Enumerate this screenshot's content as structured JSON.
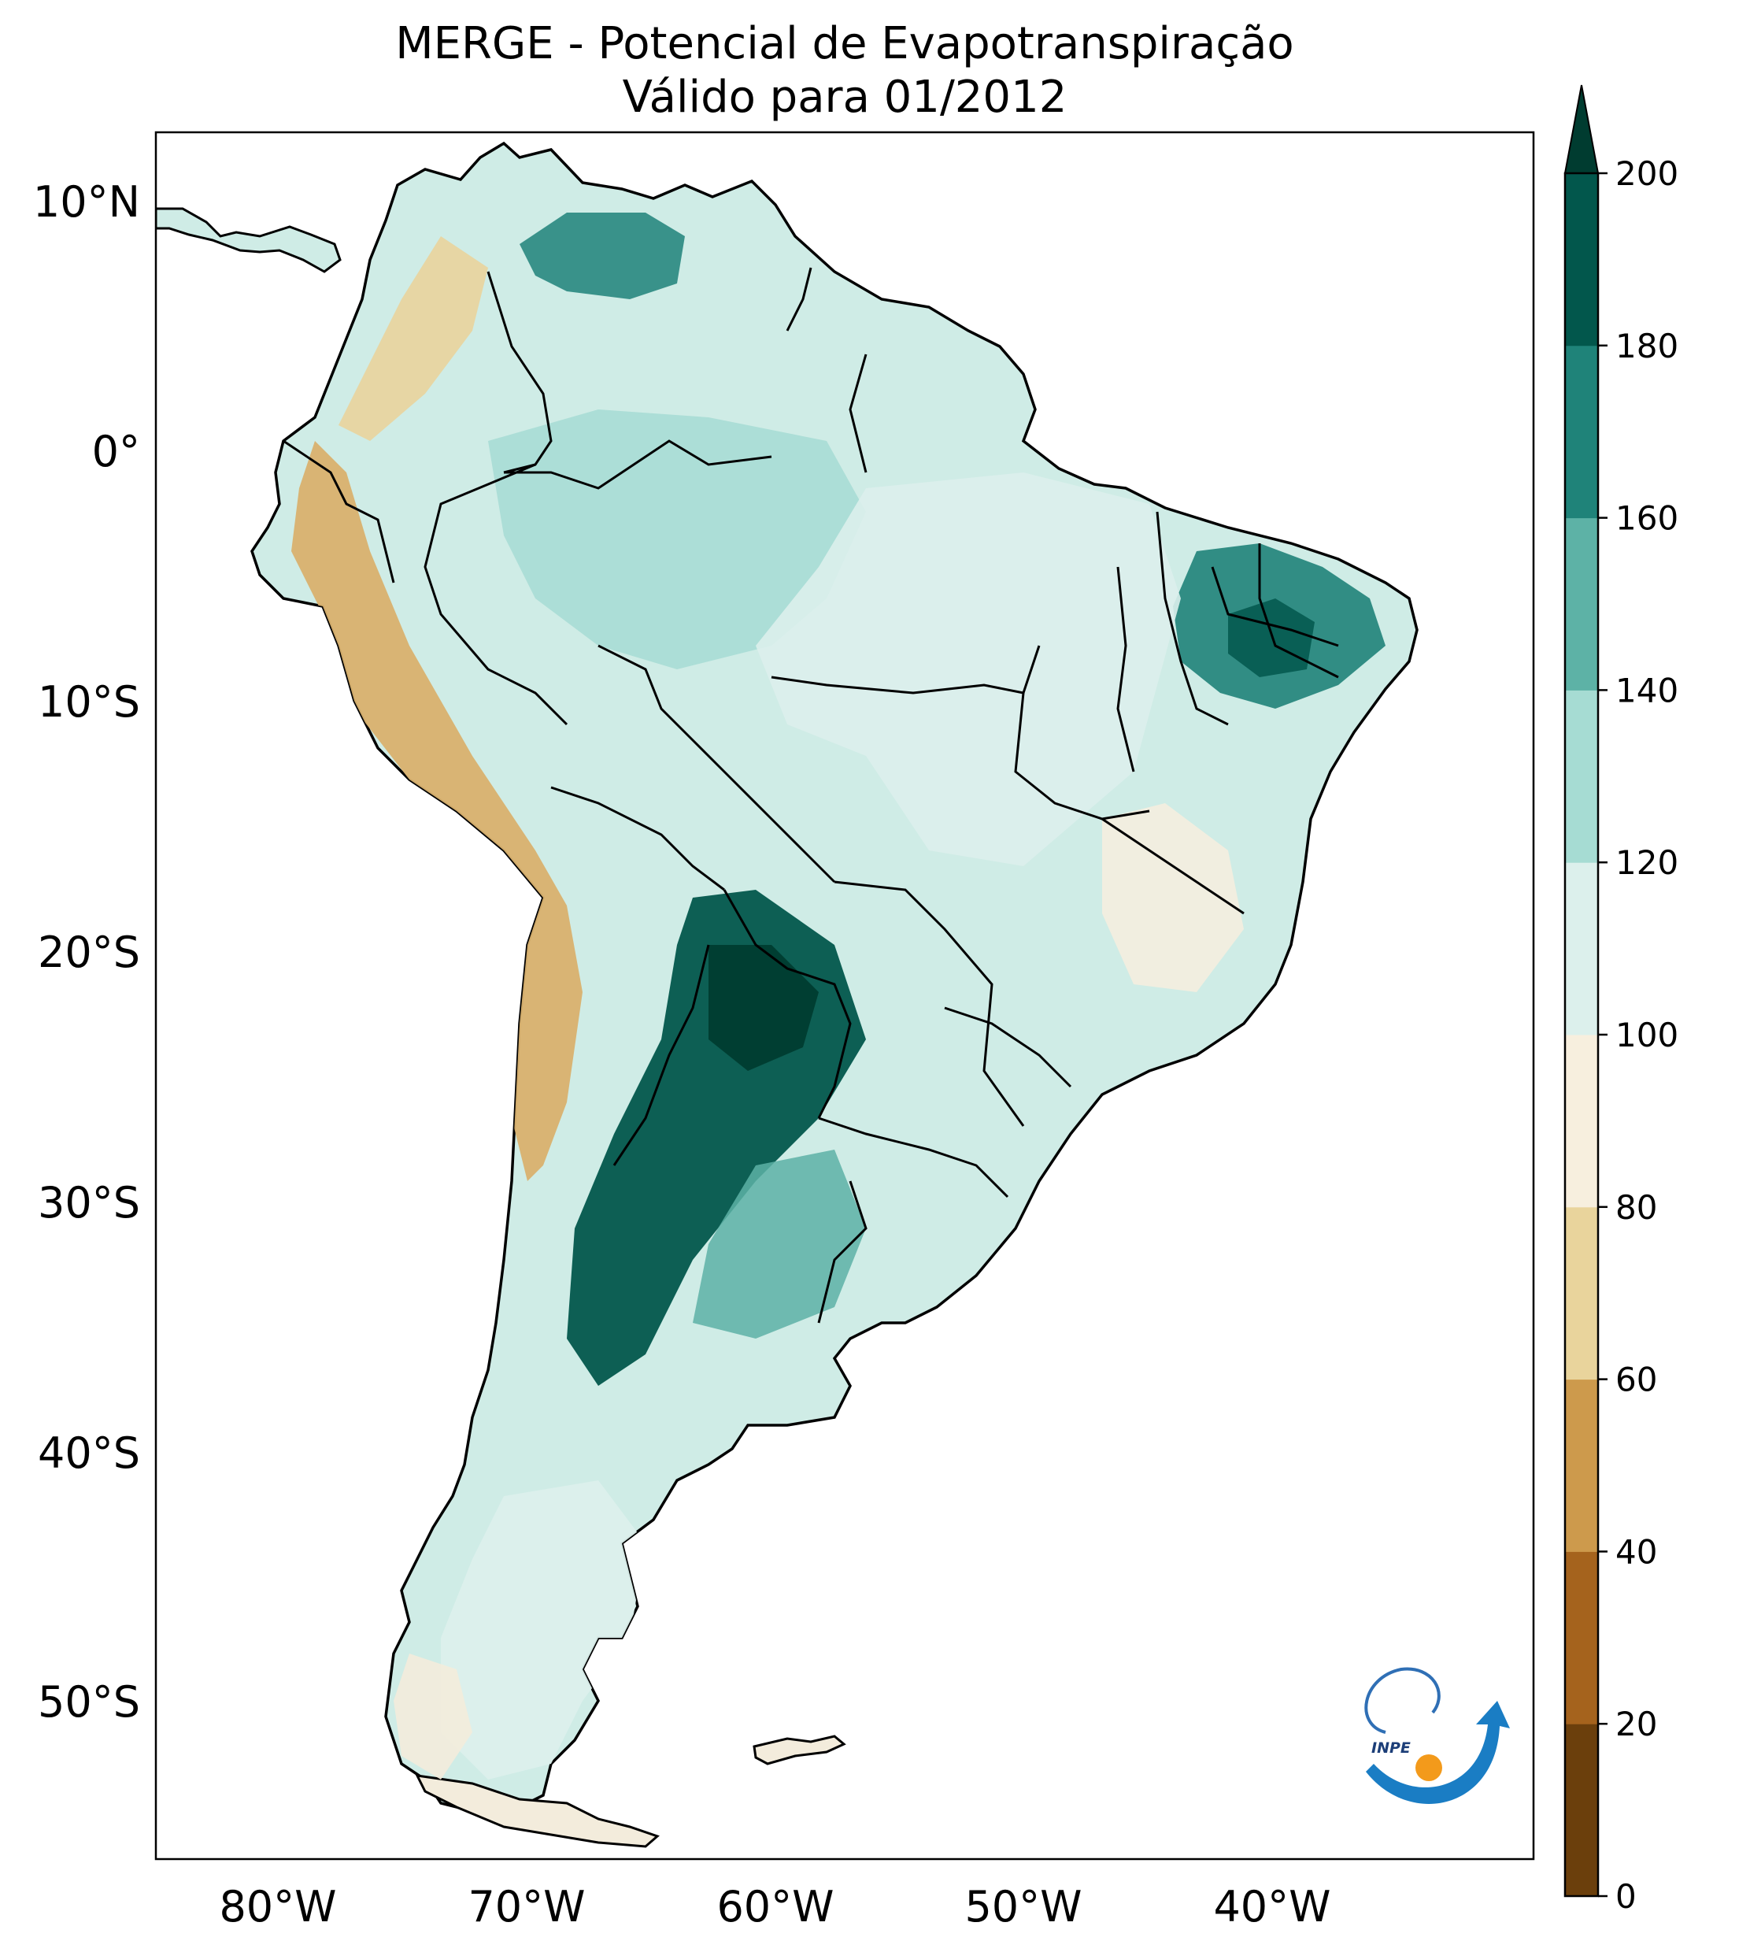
{
  "title": {
    "line1": "MERGE - Potencial de Evapotranspiração",
    "line2": "Válido para 01/2012"
  },
  "map": {
    "region": "South America",
    "variable": "Potential evapotranspiration",
    "lat_labels": [
      "10°N",
      "0°",
      "10°S",
      "20°S",
      "30°S",
      "40°S",
      "50°S"
    ],
    "lon_labels": [
      "80°W",
      "70°W",
      "60°W",
      "50°W",
      "40°W"
    ],
    "land_fill": "#cfece6",
    "ocean_fill": "#ffffff",
    "border_color": "#000000",
    "icon": "inpe-logo"
  },
  "colorbar": {
    "ticks": [
      "0",
      "20",
      "40",
      "60",
      "80",
      "100",
      "120",
      "140",
      "160",
      "180",
      "200"
    ],
    "colors": [
      "#6b3f0c",
      "#a5631d",
      "#cd9a4c",
      "#e9d49c",
      "#f7efde",
      "#dcf0ec",
      "#a6dcd3",
      "#5db2a6",
      "#1f8379",
      "#02574c",
      "#003c30"
    ],
    "extend": "max"
  },
  "logo": {
    "text": "INPE"
  }
}
